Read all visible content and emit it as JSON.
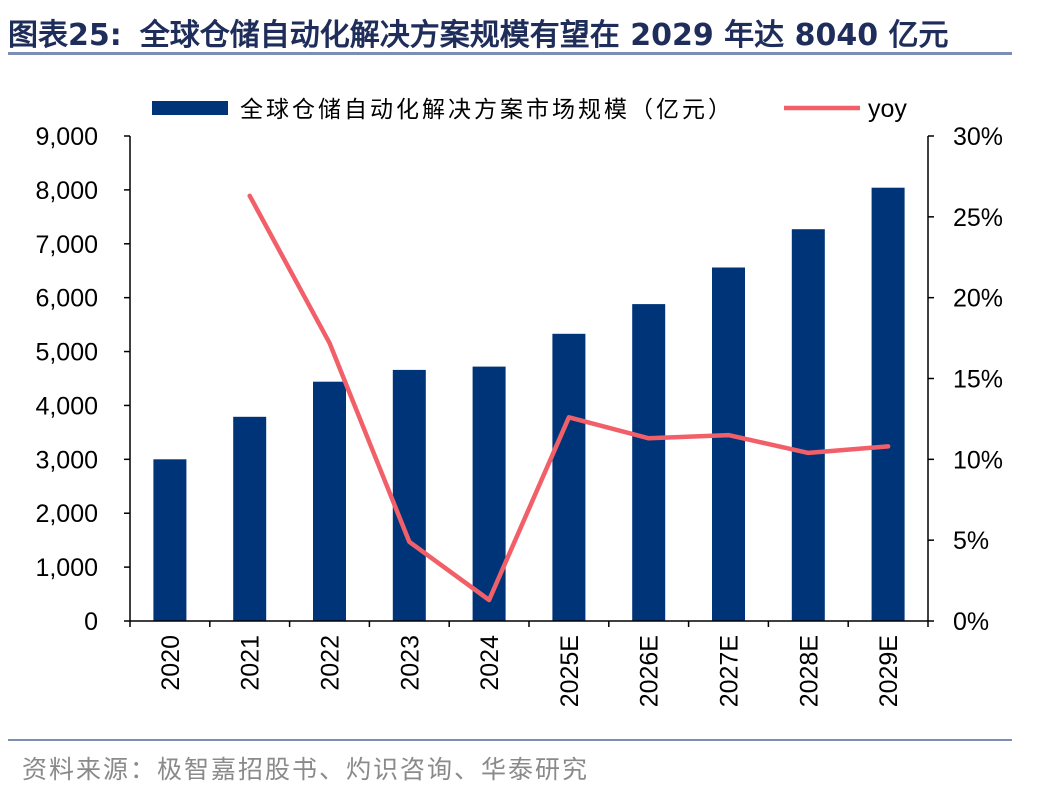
{
  "header": {
    "figure_label": "图表25:",
    "title_text": "全球仓储自动化解决方案规模有望在 2029 年达 8040 亿元"
  },
  "footer": {
    "source": "资料来源：极智嘉招股书、灼识咨询、华泰研究"
  },
  "colors": {
    "bar": "#003478",
    "line": "#f16068",
    "axis": "#000000",
    "rule": "#7d8eb4"
  },
  "chart_data": {
    "type": "bar",
    "categories": [
      "2020",
      "2021",
      "2022",
      "2023",
      "2024",
      "2025E",
      "2026E",
      "2027E",
      "2028E",
      "2029E"
    ],
    "series": [
      {
        "name": "全球仓储自动化解决方案市场规模（亿元）",
        "type": "bar",
        "axis": "left",
        "values": [
          3000,
          3790,
          4440,
          4660,
          4720,
          5330,
          5880,
          6560,
          7270,
          8040
        ]
      },
      {
        "name": "yoy",
        "type": "line",
        "axis": "right",
        "values": [
          null,
          26.3,
          17.2,
          4.9,
          1.3,
          12.6,
          11.3,
          11.5,
          10.4,
          10.8
        ]
      }
    ],
    "y_left": {
      "ylim": [
        0,
        9000
      ],
      "ticks": [
        0,
        1000,
        2000,
        3000,
        4000,
        5000,
        6000,
        7000,
        8000,
        9000
      ],
      "tick_labels": [
        "0",
        "1,000",
        "2,000",
        "3,000",
        "4,000",
        "5,000",
        "6,000",
        "7,000",
        "8,000",
        "9,000"
      ]
    },
    "y_right": {
      "ylim": [
        0,
        30
      ],
      "ticks": [
        0,
        5,
        10,
        15,
        20,
        25,
        30
      ],
      "tick_labels": [
        "0%",
        "5%",
        "10%",
        "15%",
        "20%",
        "25%",
        "30%"
      ]
    },
    "legend_position": "top",
    "grid": false
  }
}
